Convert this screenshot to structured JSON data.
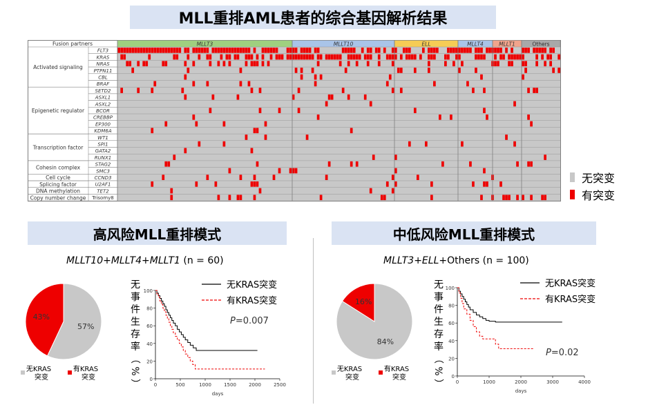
{
  "title": "MLL重排AML患者的综合基因解析结果",
  "heatmap": {
    "header_label": "Fusion partners",
    "partners": [
      {
        "name": "MLLT3",
        "color": "#9fd07f"
      },
      {
        "name": "MLLT10",
        "color": "#a9c4e8"
      },
      {
        "name": "ELL",
        "color": "#f6cc55"
      },
      {
        "name": "MLLT4",
        "color": "#a9c4e8"
      },
      {
        "name": "MLLT1",
        "color": "#f1a48c"
      },
      {
        "name": "Others",
        "color": "#a8a8a8"
      }
    ],
    "groups": [
      {
        "name": "Activated signaling",
        "genes": [
          "FLT3",
          "KRAS",
          "NRAS",
          "PTPN11",
          "CBL",
          "BRAF"
        ]
      },
      {
        "name": "Epigenetic regulator",
        "genes": [
          "SETD2",
          "ASXL1",
          "ASXL2",
          "BCOR",
          "CREBBP",
          "EP300",
          "KDM6A"
        ]
      },
      {
        "name": "Transcription factor",
        "genes": [
          "WT1",
          "SPI1",
          "GATA2",
          "RUNX1"
        ]
      },
      {
        "name": "Cohesin complex",
        "genes": [
          "STAG2",
          "SMC3"
        ]
      },
      {
        "name": "Cell cycle",
        "genes": [
          "CCND3"
        ]
      },
      {
        "name": "Splicing factor",
        "genes": [
          "U2AF1"
        ]
      },
      {
        "name": "DNA methylation",
        "genes": [
          "TET2"
        ]
      },
      {
        "name": "Copy number change",
        "genes": [
          "Trisomy8"
        ]
      }
    ],
    "legend": {
      "no_mutation": "无突变",
      "mutation": "有突变",
      "no_color": "#c8c8c8",
      "yes_color": "#ee0000"
    }
  },
  "high_risk": {
    "title": "高风险MLL重排模式",
    "subtitle_italic": "MLLT10+MLLT4+MLLT1",
    "subtitle_n": " (n = 60)",
    "pvalue_p": "P",
    "pvalue": "=0.007",
    "ylabel": "无事件生存率（%）",
    "xlabel": "days"
  },
  "low_risk": {
    "title": "中低风险MLL重排模式",
    "subtitle_italic": "MLLT3+ELL",
    "subtitle_rest": "+Others (n = 100)",
    "pvalue_p": "P",
    "pvalue": "=0.02",
    "ylabel": "无事件生存率（%）",
    "xlabel": "days"
  },
  "chart_data": [
    {
      "type": "pie",
      "title": "",
      "slices": [
        {
          "name": "无KRAS突变",
          "value": 57,
          "color": "#c8c8c8"
        },
        {
          "name": "有KRAS突变",
          "value": 43,
          "color": "#ee0000"
        }
      ],
      "labels": [
        "57%",
        "43%"
      ],
      "legend": [
        "无KRAS\n突变",
        "有KRAS\n突变"
      ]
    },
    {
      "type": "line",
      "xlabel": "days",
      "ylabel": "无事件生存率（%）",
      "xlim": [
        0,
        2500
      ],
      "ylim": [
        0,
        100
      ],
      "xticks": [
        0,
        500,
        1000,
        1500,
        2000,
        2500
      ],
      "yticks": [
        0,
        20,
        40,
        60,
        80,
        100
      ],
      "series": [
        {
          "name": "无KRAS突变",
          "color": "#000000",
          "dashed": false,
          "x": [
            0,
            30,
            60,
            90,
            120,
            150,
            180,
            210,
            240,
            270,
            300,
            330,
            360,
            400,
            440,
            480,
            520,
            560,
            600,
            650,
            700,
            760,
            820,
            900,
            1000,
            1500,
            2000,
            2050
          ],
          "y": [
            100,
            97,
            94,
            91,
            88,
            85,
            82,
            78,
            75,
            72,
            69,
            66,
            63,
            60,
            56,
            53,
            50,
            47,
            44,
            41,
            38,
            35,
            32,
            32,
            32,
            32,
            32,
            32
          ]
        },
        {
          "name": "有KRAS突变",
          "color": "#ee0000",
          "dashed": true,
          "x": [
            0,
            30,
            60,
            90,
            120,
            150,
            180,
            210,
            240,
            270,
            300,
            330,
            360,
            400,
            440,
            480,
            520,
            560,
            600,
            650,
            700,
            750,
            800,
            1000,
            1500,
            2000,
            2200
          ],
          "y": [
            100,
            96,
            92,
            88,
            84,
            80,
            76,
            72,
            68,
            64,
            60,
            56,
            52,
            48,
            44,
            40,
            36,
            32,
            28,
            24,
            20,
            16,
            11,
            11,
            11,
            11,
            11
          ]
        }
      ]
    },
    {
      "type": "pie",
      "title": "",
      "slices": [
        {
          "name": "无KRAS突变",
          "value": 84,
          "color": "#c8c8c8"
        },
        {
          "name": "有KRAS突变",
          "value": 16,
          "color": "#ee0000"
        }
      ],
      "labels": [
        "84%",
        "16%"
      ],
      "legend": [
        "无KRAS\n突变",
        "有KRAS\n突变"
      ]
    },
    {
      "type": "line",
      "xlabel": "days",
      "ylabel": "无事件生存率（%）",
      "xlim": [
        0,
        4000
      ],
      "ylim": [
        0,
        100
      ],
      "xticks": [
        0,
        1000,
        2000,
        3000,
        4000
      ],
      "yticks": [
        0,
        20,
        40,
        60,
        80,
        100
      ],
      "series": [
        {
          "name": "无KRAS突变",
          "color": "#000000",
          "dashed": false,
          "x": [
            0,
            50,
            100,
            150,
            200,
            250,
            300,
            350,
            400,
            500,
            600,
            700,
            800,
            900,
            1000,
            1200,
            1500,
            2000,
            2500,
            3000,
            3300
          ],
          "y": [
            100,
            96,
            93,
            90,
            87,
            84,
            81,
            78,
            75,
            72,
            69,
            67,
            65,
            63,
            62,
            61,
            61,
            61,
            61,
            61,
            61
          ]
        },
        {
          "name": "有KRAS突变",
          "color": "#ee0000",
          "dashed": true,
          "x": [
            0,
            50,
            100,
            150,
            200,
            300,
            400,
            500,
            600,
            700,
            800,
            1000,
            1200,
            1300,
            1500,
            2000,
            2400
          ],
          "y": [
            100,
            94,
            88,
            82,
            76,
            70,
            63,
            56,
            50,
            45,
            42,
            42,
            36,
            31,
            31,
            31,
            31
          ]
        }
      ]
    }
  ]
}
